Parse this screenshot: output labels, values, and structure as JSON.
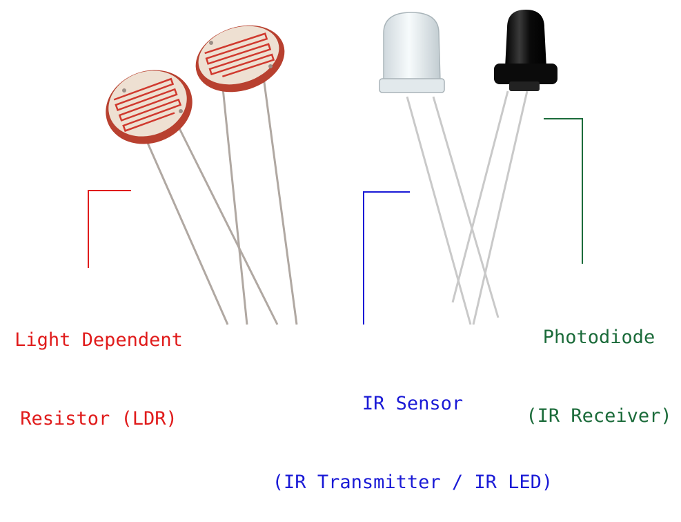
{
  "labels": {
    "ldr": {
      "line1": "Light Dependent",
      "line2": "Resistor (LDR)",
      "color": "#e01b1b"
    },
    "photodiode": {
      "line1": "Photodiode",
      "line2": "(IR Receiver)",
      "color": "#1b6b3a"
    },
    "ir_sensor": {
      "line1": "IR Sensor",
      "line2": "(IR Transmitter / IR LED)",
      "color": "#1a1ad6"
    }
  },
  "colors": {
    "ldr_body": "#c4453a",
    "ldr_face": "#f1e3d6",
    "ldr_track": "#d0392e",
    "lead": "#a9a29c",
    "ir_led_body": "#e6eef2",
    "photodiode_body": "#111111"
  }
}
